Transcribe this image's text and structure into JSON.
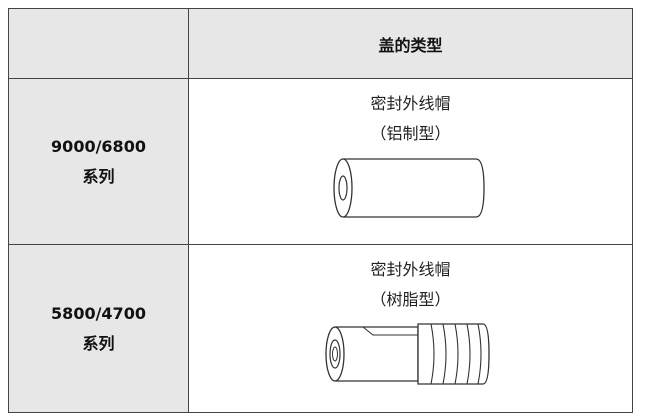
{
  "table": {
    "header": "盖的类型",
    "rows": [
      {
        "label": [
          "9000/6800",
          "系列"
        ],
        "name": "密封外线帽",
        "material": "（铝制型）"
      },
      {
        "label": [
          "5800/4700",
          "系列"
        ],
        "name": "密封外线帽",
        "material": "（树脂型）"
      }
    ]
  }
}
